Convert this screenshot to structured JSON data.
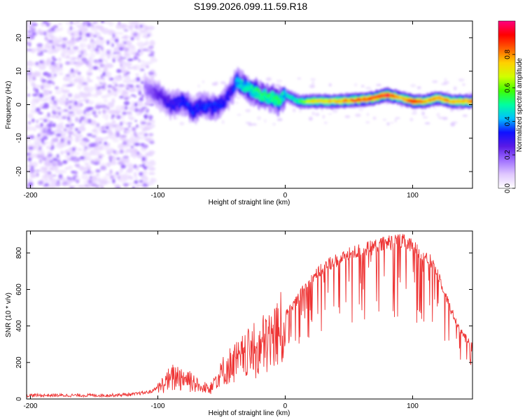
{
  "title": "S199.2026.099.11.59.R18",
  "colors": {
    "snr_line": "#ee3333",
    "frame": "#000000",
    "noise_purple": "#7b2ff0"
  },
  "chart_data": [
    {
      "type": "heatmap",
      "title": "S199.2026.099.11.59.R18",
      "xlabel": "Height of straight line (km)",
      "ylabel": "Frequency (Hz)",
      "xlim": [
        -203,
        147
      ],
      "ylim": [
        -25,
        25
      ],
      "xticks": [
        -200,
        -100,
        0,
        100
      ],
      "yticks": [
        -20,
        -10,
        0,
        10,
        20
      ],
      "colorbar": {
        "label": "Normalized spectral amplitude",
        "range": [
          0,
          1
        ],
        "ticks": [
          "0.0",
          "0.2",
          "0.4",
          "0.6",
          "0.8"
        ],
        "colormap": [
          "#ffffff",
          "#e0c8ff",
          "#a070ff",
          "#5a1ae6",
          "#1010ff",
          "#00c0ff",
          "#00ffa0",
          "#40ff00",
          "#d0ff00",
          "#ffd000",
          "#ff6000",
          "#ff0000",
          "#ff0080"
        ]
      },
      "noise_region_km": [
        -203,
        -103
      ],
      "ridge": {
        "x": [
          -110,
          -100,
          -90,
          -80,
          -72,
          -65,
          -58,
          -50,
          -42,
          -38,
          -30,
          -20,
          -10,
          -5,
          0,
          10,
          20,
          40,
          60,
          70,
          80,
          90,
          100,
          110,
          120,
          130,
          147
        ],
        "freq": [
          5,
          3,
          0,
          1,
          -2,
          0,
          -1,
          0,
          4,
          7,
          5,
          3,
          2,
          1,
          3,
          1,
          1,
          1,
          1.5,
          2,
          3,
          2,
          1,
          1,
          2,
          1,
          1
        ],
        "peak_amplitude": [
          0.1,
          0.2,
          0.25,
          0.3,
          0.3,
          0.3,
          0.3,
          0.3,
          0.25,
          0.4,
          0.45,
          0.5,
          0.5,
          0.55,
          0.4,
          0.5,
          0.7,
          0.75,
          0.85,
          0.85,
          0.95,
          0.7,
          0.9,
          0.75,
          0.8,
          0.75,
          0.8
        ]
      }
    },
    {
      "type": "line",
      "xlabel": "Height of straight line (km)",
      "ylabel": "SNR (10 * v/v)",
      "xlim": [
        -203,
        147
      ],
      "ylim": [
        0,
        920
      ],
      "xticks": [
        -200,
        -100,
        0,
        100
      ],
      "yticks": [
        0,
        200,
        400,
        600,
        800
      ],
      "series": [
        {
          "name": "SNR",
          "x": [
            -203,
            -180,
            -160,
            -140,
            -120,
            -105,
            -98,
            -92,
            -85,
            -75,
            -65,
            -58,
            -50,
            -42,
            -35,
            -28,
            -20,
            -12,
            -5,
            0,
            8,
            15,
            25,
            35,
            45,
            55,
            65,
            75,
            85,
            92,
            100,
            110,
            115,
            120,
            125,
            130,
            135,
            140,
            147
          ],
          "y": [
            20,
            20,
            20,
            20,
            25,
            40,
            80,
            120,
            150,
            130,
            60,
            100,
            160,
            220,
            250,
            300,
            320,
            380,
            420,
            470,
            540,
            620,
            700,
            760,
            790,
            820,
            840,
            860,
            880,
            880,
            850,
            800,
            760,
            700,
            600,
            500,
            420,
            360,
            300
          ]
        }
      ],
      "spike_range_km": [
        -100,
        147
      ]
    }
  ]
}
